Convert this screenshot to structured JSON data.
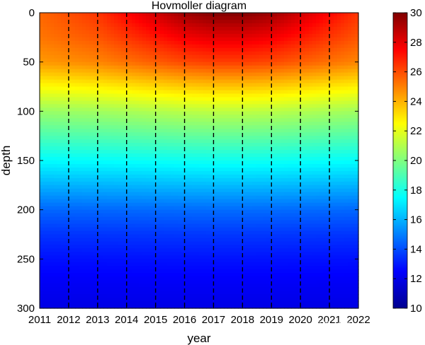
{
  "chart_data": {
    "type": "heatmap",
    "title": "Hovmoller diagram",
    "xlabel": "year",
    "ylabel": "depth",
    "xlim": [
      2011,
      2022
    ],
    "ylim": [
      0,
      300
    ],
    "y_reversed": true,
    "x_ticks": [
      "2011",
      "2012",
      "2013",
      "2014",
      "2015",
      "2016",
      "2017",
      "2018",
      "2019",
      "2020",
      "2021",
      "2022"
    ],
    "y_ticks": [
      "0",
      "50",
      "100",
      "150",
      "200",
      "250",
      "300"
    ],
    "vertical_dashed_lines_at": [
      2012,
      2013,
      2014,
      2015,
      2016,
      2017,
      2018,
      2019,
      2020,
      2021
    ],
    "colormap": "jet",
    "color_range": [
      10,
      30
    ],
    "colorbar_ticks": [
      "10",
      "12",
      "14",
      "16",
      "18",
      "20",
      "22",
      "24",
      "26",
      "28",
      "30"
    ],
    "surface_temperature_by_year": {
      "x": [
        2011,
        2012,
        2013,
        2014,
        2015,
        2016,
        2017,
        2018,
        2019,
        2020,
        2021,
        2022
      ],
      "values": [
        25.5,
        26,
        26.5,
        27.5,
        28.5,
        29.5,
        30,
        30,
        29.5,
        28.5,
        27.5,
        26.5
      ]
    },
    "temperature_profile_by_depth": {
      "depth": [
        0,
        25,
        50,
        75,
        100,
        125,
        150,
        175,
        200,
        225,
        250,
        275,
        300
      ],
      "values_2011": [
        25.5,
        25.2,
        24.5,
        22.5,
        20.5,
        19,
        17.5,
        16,
        14.5,
        13.5,
        12.8,
        12.3,
        12
      ]
    }
  },
  "watermark": {
    "text": "知乎 @Eurige(波哥)"
  }
}
